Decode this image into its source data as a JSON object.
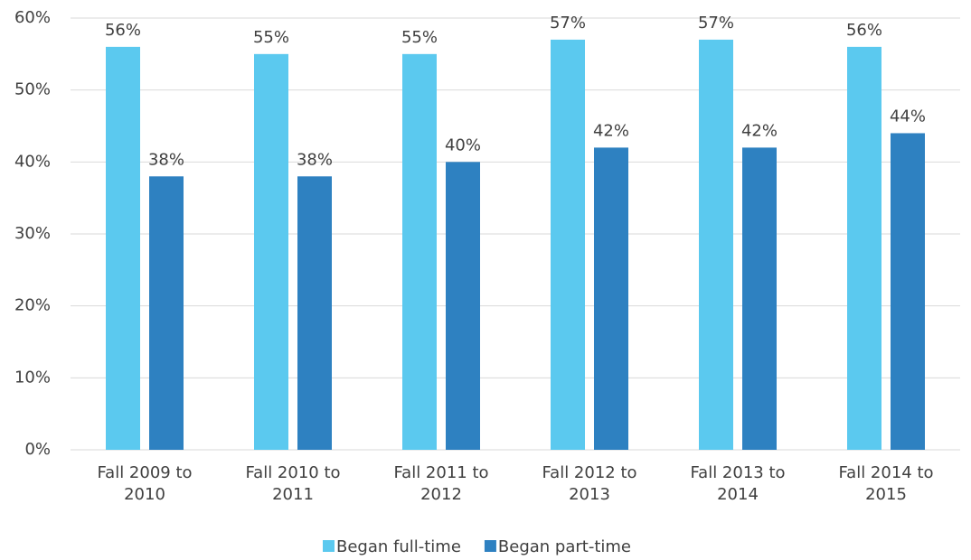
{
  "chart_data": {
    "type": "bar",
    "categories": [
      "Fall 2009 to 2010",
      "Fall 2010 to 2011",
      "Fall 2011 to 2012",
      "Fall 2012 to 2013",
      "Fall 2013 to 2014",
      "Fall 2014 to 2015"
    ],
    "series": [
      {
        "name": "Began full-time",
        "color": "#5bc9ef",
        "values": [
          56,
          55,
          55,
          57,
          57,
          56
        ],
        "value_labels": [
          "56%",
          "55%",
          "55%",
          "57%",
          "57%",
          "56%"
        ]
      },
      {
        "name": "Began part-time",
        "color": "#2e81c1",
        "values": [
          38,
          38,
          40,
          42,
          42,
          44
        ],
        "value_labels": [
          "38%",
          "38%",
          "40%",
          "42%",
          "42%",
          "44%"
        ]
      }
    ],
    "ylim": [
      0,
      60
    ],
    "yticks": [
      {
        "value": 0,
        "label": "0%"
      },
      {
        "value": 10,
        "label": "10%"
      },
      {
        "value": 20,
        "label": "20%"
      },
      {
        "value": 30,
        "label": "30%"
      },
      {
        "value": 40,
        "label": "40%"
      },
      {
        "value": 50,
        "label": "50%"
      },
      {
        "value": 60,
        "label": "60%"
      }
    ],
    "grid": true,
    "legend": "bottom"
  }
}
